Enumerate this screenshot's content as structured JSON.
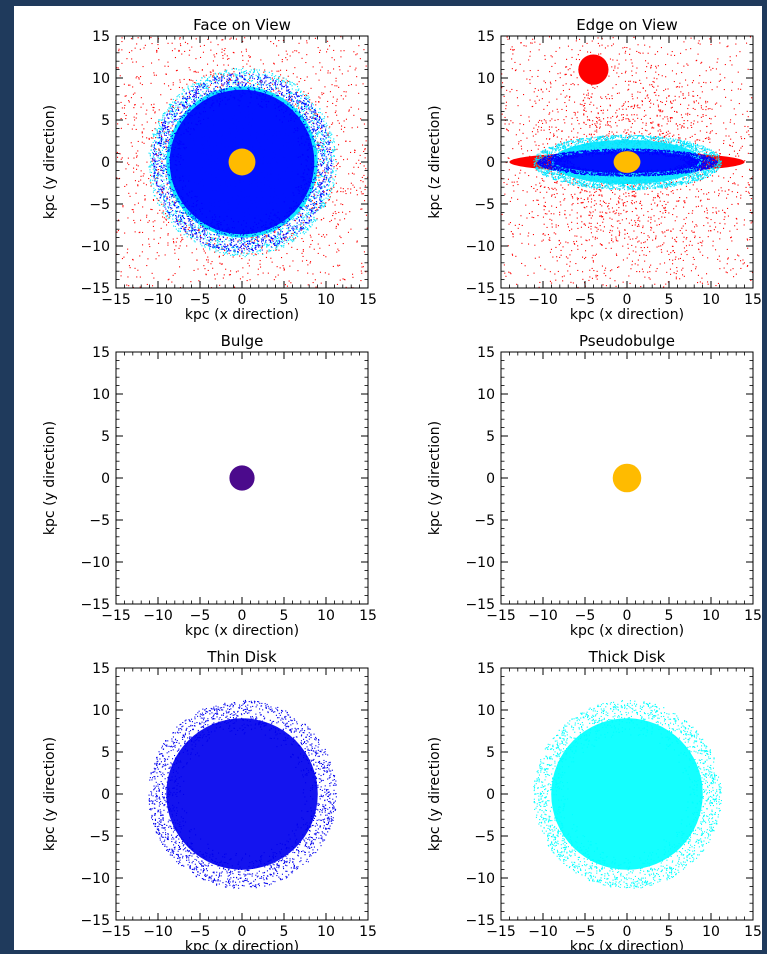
{
  "figure": {
    "background": "#ffffff",
    "frame_color": "#1f3a5c"
  },
  "chart_data": [
    {
      "type": "scatter",
      "title": "Face on View",
      "xlabel": "kpc (x direction)",
      "ylabel": "kpc (y direction)",
      "xlim": [
        -15,
        15
      ],
      "ylim": [
        -15,
        15
      ],
      "xticks": [
        "−15",
        "−10",
        "−5",
        "0",
        "5",
        "10",
        "15"
      ],
      "yticks": [
        "−15",
        "−10",
        "−5",
        "0",
        "5",
        "10",
        "15"
      ],
      "legend": "none",
      "components": [
        {
          "color": "#ff0000",
          "shape": "halo",
          "cx": 0,
          "cy": 0,
          "rx": 20,
          "ry": 20
        },
        {
          "color": "#00e5ff",
          "shape": "disk",
          "cx": 0,
          "cy": 0,
          "rx": 11,
          "ry": 11
        },
        {
          "color": "#0000ff",
          "shape": "disk",
          "cx": 0,
          "cy": 0,
          "rx": 10.5,
          "ry": 10.5
        },
        {
          "color": "#ffbb00",
          "shape": "blob",
          "cx": 0,
          "cy": 0,
          "rx": 1.6,
          "ry": 1.6
        }
      ]
    },
    {
      "type": "scatter",
      "title": "Edge on View",
      "xlabel": "kpc (x direction)",
      "ylabel": "kpc (z direction)",
      "xlim": [
        -15,
        15
      ],
      "ylim": [
        -15,
        15
      ],
      "xticks": [
        "−15",
        "−10",
        "−5",
        "0",
        "5",
        "10",
        "15"
      ],
      "yticks": [
        "−15",
        "−10",
        "−5",
        "0",
        "5",
        "10",
        "15"
      ],
      "legend": "none",
      "components": [
        {
          "color": "#ff0000",
          "shape": "halo",
          "cx": 0,
          "cy": 0,
          "rx": 20,
          "ry": 20
        },
        {
          "color": "#ff0000",
          "shape": "blob",
          "cx": -4,
          "cy": 11,
          "rx": 1.8,
          "ry": 1.8
        },
        {
          "color": "#ff0000",
          "shape": "blob",
          "cx": 0,
          "cy": 0,
          "rx": 14,
          "ry": 1.2
        },
        {
          "color": "#00e5ff",
          "shape": "disk",
          "cx": 0,
          "cy": 0,
          "rx": 11,
          "ry": 3.2
        },
        {
          "color": "#0000ff",
          "shape": "disk",
          "cx": 0,
          "cy": 0,
          "rx": 10.5,
          "ry": 1.6
        },
        {
          "color": "#ffbb00",
          "shape": "blob",
          "cx": 0,
          "cy": 0,
          "rx": 1.6,
          "ry": 1.3
        }
      ]
    },
    {
      "type": "scatter",
      "title": "Bulge",
      "xlabel": "kpc (x direction)",
      "ylabel": "kpc (y direction)",
      "xlim": [
        -15,
        15
      ],
      "ylim": [
        -15,
        15
      ],
      "xticks": [
        "−15",
        "−10",
        "−5",
        "0",
        "5",
        "10",
        "15"
      ],
      "yticks": [
        "−15",
        "−10",
        "−5",
        "0",
        "5",
        "10",
        "15"
      ],
      "legend": "none",
      "components": [
        {
          "color": "#4b0a8c",
          "shape": "blob",
          "cx": 0,
          "cy": 0,
          "rx": 1.5,
          "ry": 1.5
        }
      ]
    },
    {
      "type": "scatter",
      "title": "Pseudobulge",
      "xlabel": "kpc (x direction)",
      "ylabel": "kpc (y direction)",
      "xlim": [
        -15,
        15
      ],
      "ylim": [
        -15,
        15
      ],
      "xticks": [
        "−15",
        "−10",
        "−5",
        "0",
        "5",
        "10",
        "15"
      ],
      "yticks": [
        "−15",
        "−10",
        "−5",
        "0",
        "5",
        "10",
        "15"
      ],
      "legend": "none",
      "components": [
        {
          "color": "#ffbb00",
          "shape": "blob",
          "cx": 0,
          "cy": 0,
          "rx": 1.7,
          "ry": 1.7
        }
      ]
    },
    {
      "type": "scatter",
      "title": "Thin Disk",
      "xlabel": "kpc (x direction)",
      "ylabel": "kpc (y direction)",
      "xlim": [
        -15,
        15
      ],
      "ylim": [
        -15,
        15
      ],
      "xticks": [
        "−15",
        "−10",
        "−5",
        "0",
        "5",
        "10",
        "15"
      ],
      "yticks": [
        "−15",
        "−10",
        "−5",
        "0",
        "5",
        "10",
        "15"
      ],
      "legend": "none",
      "components": [
        {
          "color": "#0000ee",
          "shape": "disk",
          "cx": 0,
          "cy": 0,
          "rx": 11,
          "ry": 11
        }
      ]
    },
    {
      "type": "scatter",
      "title": "Thick Disk",
      "xlabel": "kpc (x direction)",
      "ylabel": "kpc (y direction)",
      "xlim": [
        -15,
        15
      ],
      "ylim": [
        -15,
        15
      ],
      "xticks": [
        "−15",
        "−10",
        "−5",
        "0",
        "5",
        "10",
        "15"
      ],
      "yticks": [
        "−15",
        "−10",
        "−5",
        "0",
        "5",
        "10",
        "15"
      ],
      "legend": "none",
      "components": [
        {
          "color": "#00ffff",
          "shape": "disk",
          "cx": 0,
          "cy": 0,
          "rx": 11,
          "ry": 11
        }
      ]
    }
  ]
}
